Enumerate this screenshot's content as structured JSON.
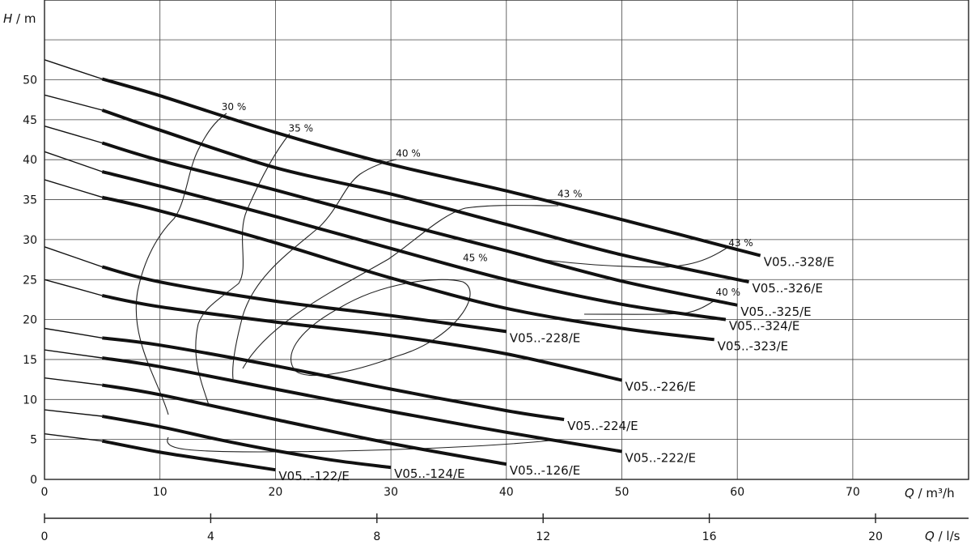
{
  "chart_data": {
    "type": "line",
    "title": "",
    "y_axis": {
      "label_var": "H",
      "label_unit": "m",
      "range": [
        0,
        55
      ],
      "ticks": [
        "0",
        "5",
        "10",
        "15",
        "20",
        "25",
        "30",
        "35",
        "40",
        "45",
        "50"
      ]
    },
    "x_axis_primary": {
      "label_var": "Q",
      "label_unit": "m³/h",
      "range": [
        0,
        80
      ],
      "ticks": [
        "0",
        "10",
        "20",
        "30",
        "40",
        "50",
        "60",
        "70"
      ]
    },
    "x_axis_secondary": {
      "label_var": "Q",
      "label_unit": "l/s",
      "range": [
        0,
        22.2
      ],
      "ticks": [
        "0",
        "4",
        "8",
        "12",
        "16",
        "20"
      ]
    },
    "grid": true,
    "series": [
      {
        "name": "V05..-122/E",
        "shut_off": 5.7,
        "x": [
          5,
          10,
          15,
          20
        ],
        "y": [
          4.8,
          3.4,
          2.3,
          1.2
        ]
      },
      {
        "name": "V05..-124/E",
        "shut_off": 8.7,
        "x": [
          5,
          10,
          15,
          20,
          25,
          30
        ],
        "y": [
          7.9,
          6.6,
          5.0,
          3.6,
          2.4,
          1.5
        ]
      },
      {
        "name": "V05..-126/E",
        "shut_off": 12.7,
        "x": [
          5,
          10,
          20,
          30,
          40
        ],
        "y": [
          11.8,
          10.6,
          7.5,
          4.5,
          1.9
        ]
      },
      {
        "name": "V05..-222/E",
        "shut_off": 16.2,
        "x": [
          5,
          10,
          20,
          30,
          40,
          50
        ],
        "y": [
          15.2,
          14.1,
          11.3,
          8.5,
          5.9,
          3.5
        ]
      },
      {
        "name": "V05..-224/E",
        "shut_off": 18.9,
        "x": [
          5,
          10,
          20,
          30,
          40,
          45
        ],
        "y": [
          17.7,
          16.8,
          14.2,
          11.3,
          8.6,
          7.5
        ]
      },
      {
        "name": "V05..-226/E",
        "shut_off": 25.0,
        "x": [
          5,
          10,
          20,
          30,
          40,
          50
        ],
        "y": [
          23.0,
          21.6,
          19.7,
          18.0,
          15.7,
          12.4
        ]
      },
      {
        "name": "V05..-228/E",
        "shut_off": 29.1,
        "x": [
          5,
          10,
          20,
          30,
          40
        ],
        "y": [
          26.6,
          24.7,
          22.3,
          20.5,
          18.5
        ]
      },
      {
        "name": "V05..-323/E",
        "shut_off": 37.5,
        "x": [
          5,
          10,
          20,
          30,
          40,
          50,
          58
        ],
        "y": [
          35.3,
          33.6,
          29.6,
          25.2,
          21.4,
          18.9,
          17.5
        ]
      },
      {
        "name": "V05..-324/E",
        "shut_off": 41.0,
        "x": [
          5,
          10,
          20,
          30,
          40,
          50,
          59
        ],
        "y": [
          38.5,
          36.7,
          32.9,
          28.9,
          25.0,
          21.9,
          20.0
        ]
      },
      {
        "name": "V05..-325/E",
        "shut_off": 44.2,
        "x": [
          5,
          10,
          20,
          30,
          40,
          50,
          60
        ],
        "y": [
          42.1,
          39.9,
          36.2,
          32.3,
          28.6,
          24.8,
          21.8
        ]
      },
      {
        "name": "V05..-326/E",
        "shut_off": 48.1,
        "x": [
          5,
          10,
          20,
          30,
          40,
          50,
          61
        ],
        "y": [
          46.2,
          43.7,
          39.0,
          35.7,
          31.9,
          28.1,
          24.7
        ]
      },
      {
        "name": "V05..-328/E",
        "shut_off": 52.5,
        "x": [
          5,
          10,
          20,
          30,
          40,
          50,
          62
        ],
        "y": [
          50.1,
          48.0,
          43.4,
          39.4,
          36.1,
          32.5,
          28.0
        ]
      }
    ],
    "efficiency_labels": [
      "30 %",
      "35 %",
      "40 %",
      "43 %",
      "45 %",
      "43 %",
      "40 %"
    ]
  }
}
